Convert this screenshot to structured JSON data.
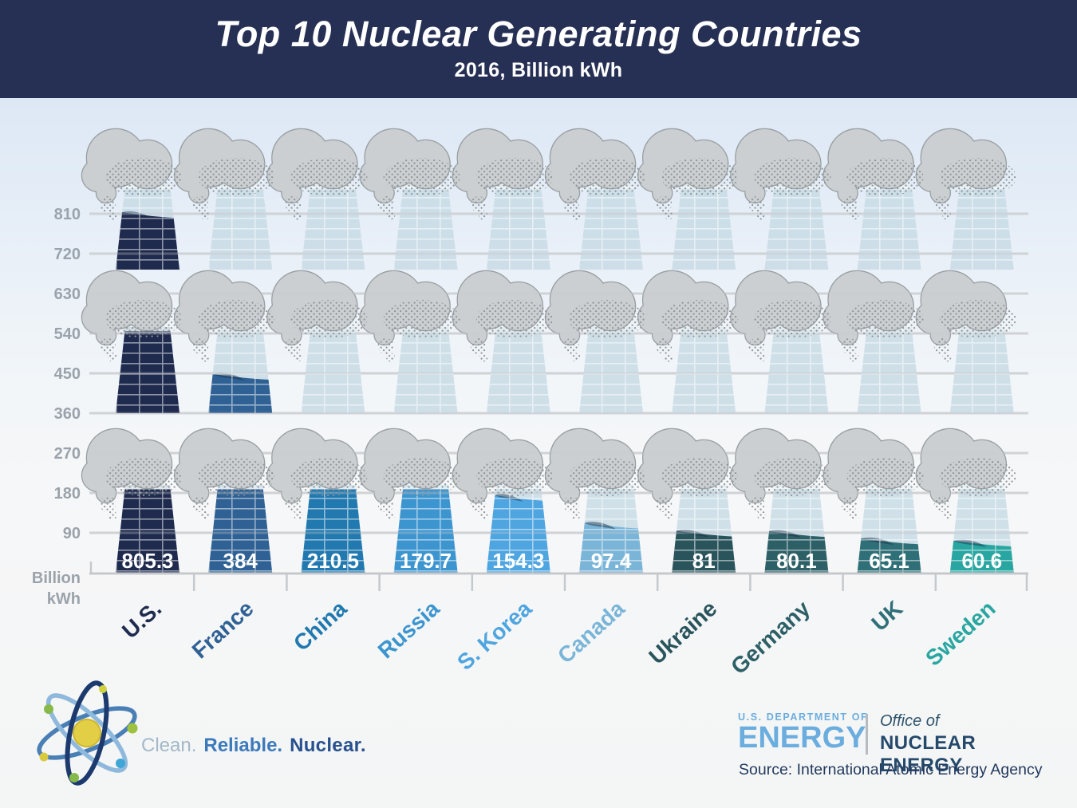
{
  "header": {
    "title": "Top 10 Nuclear Generating Countries",
    "subtitle": "2016, Billion kWh"
  },
  "axis": {
    "ticks": [
      810,
      720,
      630,
      540,
      450,
      360,
      270,
      180,
      90
    ],
    "unit_line1": "Billion",
    "unit_line2": "kWh"
  },
  "chart_data": {
    "type": "bar",
    "title": "Top 10 Nuclear Generating Countries",
    "subtitle": "2016, Billion kWh",
    "ylabel": "Billion kWh",
    "ylim": [
      0,
      900
    ],
    "axis_ticks": [
      90,
      180,
      270,
      360,
      450,
      540,
      630,
      720,
      810
    ],
    "grid": true,
    "layout_note": "single series wrapped into three stacked bands (0-270, 360-630, 630-900), each bar drawn as a cooling tower with a steam cloud",
    "categories": [
      "U.S.",
      "France",
      "China",
      "Russia",
      "S. Korea",
      "Canada",
      "Ukraine",
      "Germany",
      "UK",
      "Sweden"
    ],
    "values": [
      805.3,
      384,
      210.5,
      179.7,
      154.3,
      97.4,
      81,
      80.1,
      65.1,
      60.6
    ],
    "value_labels": [
      "805.3",
      "384",
      "210.5",
      "179.7",
      "154.3",
      "97.4",
      "81",
      "80.1",
      "65.1",
      "60.6"
    ],
    "colors": [
      "#1f2b4e",
      "#2f6194",
      "#2179af",
      "#3d95cf",
      "#4fa5e0",
      "#7ab5d8",
      "#2a545c",
      "#2d5f67",
      "#2f6f77",
      "#29a6a1"
    ]
  },
  "footer": {
    "tagline": [
      {
        "text": "Clean.",
        "color": "#a3b8c8"
      },
      {
        "text": "Reliable.",
        "color": "#3d7abc"
      },
      {
        "text": "Nuclear.",
        "color": "#28508f"
      }
    ],
    "doe_department": "U.S. DEPARTMENT OF",
    "doe_energy": "ENERGY",
    "office_of": "Office of",
    "office_name": "NUCLEAR ENERGY",
    "source": "Source: International Atomic Energy Agency"
  }
}
